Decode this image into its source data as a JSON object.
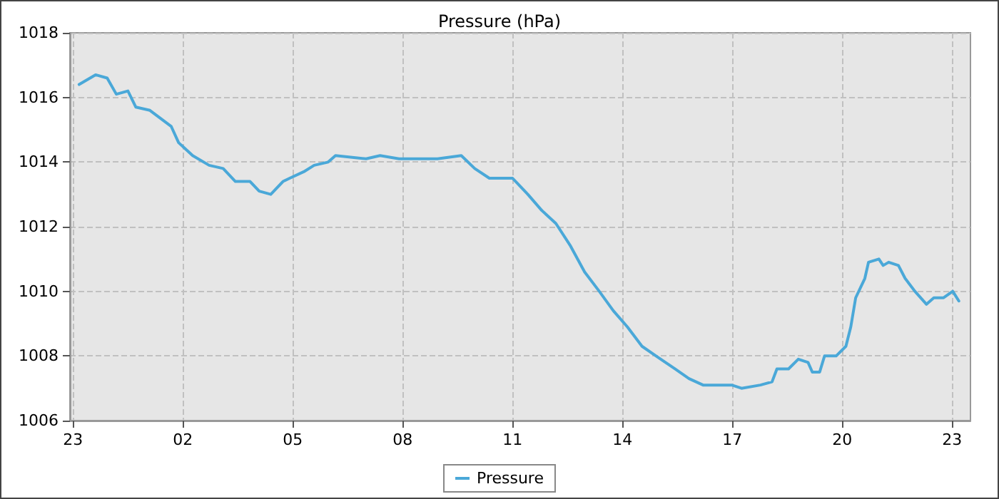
{
  "chart_data": {
    "type": "line",
    "title": "Pressure (hPa)",
    "xlim": [
      "--01-01T22:55",
      "--01-02T23:30"
    ],
    "xticks": [
      {
        "value": "--01-01T23:00",
        "label": "23"
      },
      {
        "value": "--01-02T02:00",
        "label": "02"
      },
      {
        "value": "--01-02T05:00",
        "label": "05"
      },
      {
        "value": "--01-02T08:00",
        "label": "08"
      },
      {
        "value": "--01-02T11:00",
        "label": "11"
      },
      {
        "value": "--01-02T14:00",
        "label": "14"
      },
      {
        "value": "--01-02T17:00",
        "label": "17"
      },
      {
        "value": "--01-02T20:00",
        "label": "20"
      },
      {
        "value": "--01-02T23:00",
        "label": "23"
      }
    ],
    "ylim": [
      1006,
      1018
    ],
    "yticks": [
      1006,
      1008,
      1010,
      1012,
      1014,
      1016,
      1018
    ],
    "grid": true,
    "legend": "bottom",
    "marker": "none",
    "line_style": "solid",
    "series": [
      {
        "name": "Pressure",
        "color": "#4aa8d8",
        "x": [
          "--01-01T23:10",
          "--01-01T23:37",
          "--01-01T23:56",
          "--01-02T00:11",
          "--01-02T00:30",
          "--01-02T00:43",
          "--01-02T01:06",
          "--01-02T01:41",
          "--01-02T01:53",
          "--01-02T02:16",
          "--01-02T02:43",
          "--01-02T03:06",
          "--01-02T03:26",
          "--01-02T03:50",
          "--01-02T04:05",
          "--01-02T04:24",
          "--01-02T04:44",
          "--01-02T04:55",
          "--01-02T05:18",
          "--01-02T05:35",
          "--01-02T05:58",
          "--01-02T06:10",
          "--01-02T07:00",
          "--01-02T07:23",
          "--01-02T07:54",
          "--01-02T08:57",
          "--01-02T09:36",
          "--01-02T09:58",
          "--01-02T10:22",
          "--01-02T11:00",
          "--01-02T11:25",
          "--01-02T11:48",
          "--01-02T12:11",
          "--01-02T12:35",
          "--01-02T12:58",
          "--01-02T13:22",
          "--01-02T13:45",
          "--01-02T14:08",
          "--01-02T14:32",
          "--01-02T14:55",
          "--01-02T15:26",
          "--01-02T15:49",
          "--01-02T16:12",
          "--01-02T16:59",
          "--01-02T17:15",
          "--01-02T17:46",
          "--01-02T18:05",
          "--01-02T18:13",
          "--01-02T18:32",
          "--01-02T18:48",
          "--01-02T19:04",
          "--01-02T19:11",
          "--01-02T19:23",
          "--01-02T19:31",
          "--01-02T19:50",
          "--01-02T20:06",
          "--01-02T20:14",
          "--01-02T20:22",
          "--01-02T20:37",
          "--01-02T20:43",
          "--01-02T21:00",
          "--01-02T21:07",
          "--01-02T21:16",
          "--01-02T21:32",
          "--01-02T21:43",
          "--01-02T21:59",
          "--01-02T22:18",
          "--01-02T22:30",
          "--01-02T22:46",
          "--01-02T23:01",
          "--01-02T23:11"
        ],
        "values": [
          1016.4,
          1016.7,
          1016.6,
          1016.1,
          1016.2,
          1015.7,
          1015.6,
          1015.1,
          1014.6,
          1014.2,
          1013.9,
          1013.8,
          1013.4,
          1013.4,
          1013.1,
          1013.0,
          1013.4,
          1013.5,
          1013.7,
          1013.9,
          1014.0,
          1014.2,
          1014.1,
          1014.2,
          1014.1,
          1014.1,
          1014.2,
          1013.8,
          1013.5,
          1013.5,
          1013.0,
          1012.5,
          1012.1,
          1011.4,
          1010.6,
          1010.0,
          1009.4,
          1008.9,
          1008.3,
          1008.0,
          1007.6,
          1007.3,
          1007.1,
          1007.1,
          1007.0,
          1007.1,
          1007.2,
          1007.6,
          1007.6,
          1007.9,
          1007.8,
          1007.5,
          1007.5,
          1008.0,
          1008.0,
          1008.3,
          1008.9,
          1009.8,
          1010.4,
          1010.9,
          1011.0,
          1010.8,
          1010.9,
          1010.8,
          1010.4,
          1010.0,
          1009.6,
          1009.8,
          1009.8,
          1010.0,
          1009.7
        ]
      }
    ]
  }
}
